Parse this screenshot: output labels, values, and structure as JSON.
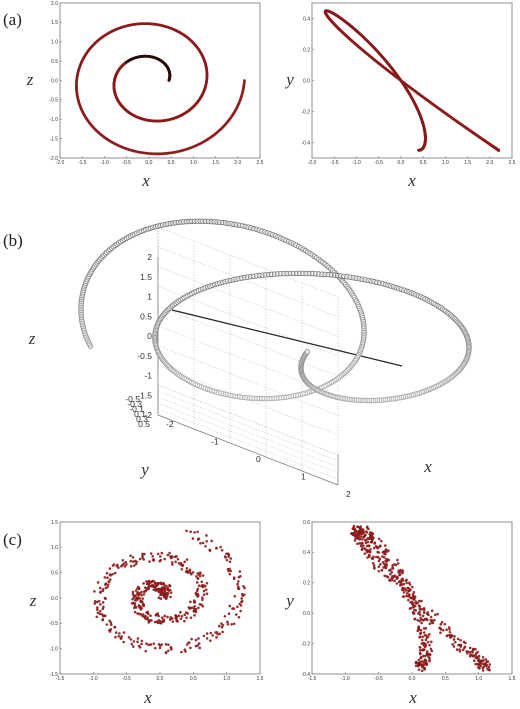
{
  "panel_labels": [
    "(a)",
    "(b)",
    "(c)"
  ],
  "colors": {
    "marker": "#8b1a1a",
    "marker_dark": "#2a0d0d",
    "frame": "#777777",
    "grid": "#bbbbbb",
    "ring": "#888888"
  },
  "chart_data": [
    {
      "id": "a-left",
      "type": "scatter",
      "xlabel": "x",
      "ylabel": "z",
      "xlim": [
        -2.0,
        2.5
      ],
      "ylim": [
        -2.0,
        2.0
      ],
      "xticks": [
        "-2.0",
        "-1.5",
        "-1.0",
        "-0.5",
        "0.0",
        "0.5",
        "1.0",
        "1.5",
        "2.0",
        "2.5"
      ],
      "yticks": [
        "-2.0",
        "-1.5",
        "-1.0",
        "-0.5",
        "0.0",
        "0.5",
        "1.0",
        "1.5",
        "2.0"
      ],
      "curve": "spiral",
      "spiral": {
        "cx": 0.05,
        "cy": 0.0,
        "r0": 0.4,
        "r1": 2.1,
        "turns": 2.0
      }
    },
    {
      "id": "a-right",
      "type": "scatter",
      "xlabel": "x",
      "ylabel": "y",
      "xlim": [
        -2.0,
        2.5
      ],
      "ylim": [
        -0.5,
        0.5
      ],
      "xticks": [
        "-2.0",
        "-1.5",
        "-1.0",
        "-0.5",
        "0.0",
        "0.5",
        "1.0",
        "1.5",
        "2.0",
        "2.5"
      ],
      "yticks": [
        "-0.4",
        "-0.2",
        "0.0",
        "0.2",
        "0.4"
      ],
      "curve": "helix",
      "helix": {
        "amp_min": 0.4,
        "amp_max": 2.2,
        "y_min": -0.45,
        "y_max": 0.45
      }
    },
    {
      "id": "b",
      "type": "scatter3d",
      "xlabel": "x",
      "ylabel": "y",
      "zlabel": "z",
      "zticks": [
        "-2",
        "-1.5",
        "-1",
        "-0.5",
        "0",
        "0.5",
        "1",
        "1.5",
        "2"
      ],
      "yticks": [
        "0.5",
        "0.3",
        "0.1",
        "-0.1",
        "-0.3",
        "-0.5"
      ],
      "xticks": [
        "-2",
        "-1",
        "0",
        "1",
        "2"
      ]
    },
    {
      "id": "c-left",
      "type": "scatter",
      "xlabel": "x",
      "ylabel": "z",
      "xlim": [
        -1.5,
        1.5
      ],
      "ylim": [
        -1.5,
        1.5
      ],
      "xticks": [
        "-1.5",
        "-1.0",
        "-0.5",
        "0.0",
        "0.5",
        "1.0",
        "1.5"
      ],
      "yticks": [
        "-1.5",
        "-1.0",
        "-0.5",
        "0.0",
        "0.5",
        "1.0",
        "1.5"
      ],
      "curve": "spiral",
      "spiral": {
        "cx": 0.0,
        "cy": 0.05,
        "r0": 0.05,
        "r1": 1.3,
        "turns": 2.2
      }
    },
    {
      "id": "c-right",
      "type": "scatter",
      "xlabel": "x",
      "ylabel": "y",
      "xlim": [
        -1.5,
        1.5
      ],
      "ylim": [
        -0.4,
        0.6
      ],
      "xticks": [
        "-1.5",
        "-1.0",
        "-0.5",
        "0.0",
        "0.5",
        "1.0",
        "1.5"
      ],
      "yticks": [
        "-0.4",
        "-0.2",
        "0.0",
        "0.2",
        "0.4",
        "0.6"
      ],
      "curve": "helix",
      "helix": {
        "amp_min": 0.1,
        "amp_max": 1.1,
        "y_min": -0.35,
        "y_max": 0.55
      }
    }
  ]
}
